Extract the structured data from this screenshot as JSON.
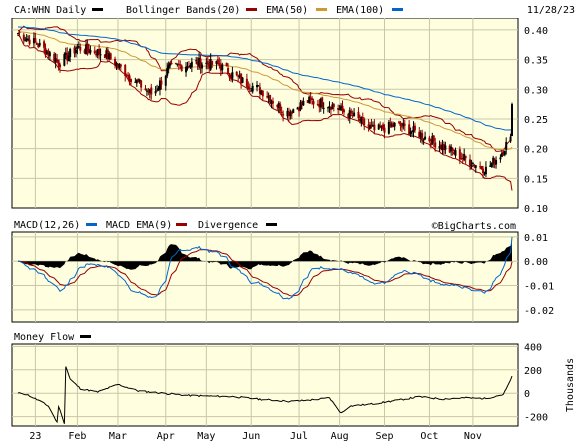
{
  "header": {
    "ticker_label": "CA:WHN Daily",
    "date": "11/28/23",
    "legend": [
      {
        "label": "Bollinger Bands(20)",
        "color": "#990000"
      },
      {
        "label": "EMA(50)",
        "color": "#cc9933"
      },
      {
        "label": "EMA(100)",
        "color": "#0066cc"
      }
    ]
  },
  "macd_panel": {
    "legend": [
      {
        "label": "MACD(12,26)",
        "color": "#0066cc"
      },
      {
        "label": "MACD EMA(9)",
        "color": "#990000"
      },
      {
        "label": "Divergence",
        "color": "#000000"
      }
    ],
    "watermark": "©BigCharts.com"
  },
  "money_panel": {
    "legend": [
      {
        "label": "Money Flow",
        "color": "#000000"
      }
    ],
    "ylabel": "Thousands"
  },
  "colors": {
    "background": "#ffffe0",
    "up": "#000000",
    "down": "#990000",
    "bollinger": "#990000",
    "ema50": "#cc9933",
    "ema100": "#0066cc",
    "macd": "#0066cc",
    "signal": "#990000"
  },
  "chart_data": [
    {
      "type": "candlestick",
      "panel": "price",
      "ylim": [
        0.1,
        0.42
      ],
      "y_ticks": [
        "0.40",
        "0.35",
        "0.30",
        "0.25",
        "0.20",
        "0.15",
        "0.10"
      ],
      "y_tick_values": [
        0.4,
        0.35,
        0.3,
        0.25,
        0.2,
        0.15,
        0.1
      ],
      "x_labels": [
        "23",
        "Feb",
        "Mar",
        "Apr",
        "May",
        "Jun",
        "Jul",
        "Aug",
        "Sep",
        "Oct",
        "Nov"
      ],
      "x_label_dates": [
        "2023-01-03",
        "2023-02-01",
        "2023-03-01",
        "2023-04-03",
        "2023-05-01",
        "2023-06-01",
        "2023-07-04",
        "2023-08-01",
        "2023-09-01",
        "2023-10-02",
        "2023-11-01"
      ],
      "date_range": [
        "2022-12-22",
        "2023-11-28"
      ],
      "close_anchors": [
        {
          "date": "2022-12-22",
          "close": 0.395
        },
        {
          "date": "2023-01-05",
          "close": 0.375
        },
        {
          "date": "2023-01-20",
          "close": 0.345
        },
        {
          "date": "2023-02-01",
          "close": 0.37
        },
        {
          "date": "2023-02-20",
          "close": 0.36
        },
        {
          "date": "2023-03-10",
          "close": 0.32
        },
        {
          "date": "2023-03-25",
          "close": 0.29
        },
        {
          "date": "2023-04-05",
          "close": 0.335
        },
        {
          "date": "2023-04-25",
          "close": 0.345
        },
        {
          "date": "2023-05-10",
          "close": 0.34
        },
        {
          "date": "2023-05-25",
          "close": 0.315
        },
        {
          "date": "2023-06-10",
          "close": 0.295
        },
        {
          "date": "2023-06-25",
          "close": 0.26
        },
        {
          "date": "2023-07-10",
          "close": 0.28
        },
        {
          "date": "2023-07-25",
          "close": 0.275
        },
        {
          "date": "2023-08-10",
          "close": 0.255
        },
        {
          "date": "2023-08-25",
          "close": 0.23
        },
        {
          "date": "2023-09-10",
          "close": 0.24
        },
        {
          "date": "2023-09-25",
          "close": 0.225
        },
        {
          "date": "2023-10-10",
          "close": 0.205
        },
        {
          "date": "2023-10-25",
          "close": 0.185
        },
        {
          "date": "2023-11-10",
          "close": 0.165
        },
        {
          "date": "2023-11-20",
          "close": 0.19
        },
        {
          "date": "2023-11-27",
          "close": 0.22
        },
        {
          "date": "2023-11-28",
          "close": 0.275
        }
      ],
      "series": [
        {
          "name": "Bollinger Bands(20)"
        },
        {
          "name": "EMA(50)"
        },
        {
          "name": "EMA(100)"
        }
      ],
      "grid": true
    },
    {
      "type": "line",
      "panel": "macd",
      "ylim": [
        -0.025,
        0.012
      ],
      "y_ticks": [
        "0.01",
        "0.00",
        "-0.01",
        "-0.02"
      ],
      "y_tick_values": [
        0.01,
        0.0,
        -0.01,
        -0.02
      ],
      "series": [
        {
          "name": "MACD(12,26)"
        },
        {
          "name": "MACD EMA(9)"
        },
        {
          "name": "Divergence",
          "type": "area"
        }
      ],
      "grid": true
    },
    {
      "type": "line",
      "panel": "money_flow",
      "ylim": [
        -280,
        420
      ],
      "y_ticks": [
        "400",
        "200",
        "0",
        "-200"
      ],
      "y_tick_values": [
        400,
        200,
        0,
        -200
      ],
      "anchors": [
        {
          "date": "2022-12-22",
          "value": 0
        },
        {
          "date": "2022-12-28",
          "value": -10
        },
        {
          "date": "2023-01-05",
          "value": -60
        },
        {
          "date": "2023-01-12",
          "value": -110
        },
        {
          "date": "2023-01-18",
          "value": -250
        },
        {
          "date": "2023-01-19",
          "value": -110
        },
        {
          "date": "2023-01-23",
          "value": -255
        },
        {
          "date": "2023-01-24",
          "value": 230
        },
        {
          "date": "2023-01-27",
          "value": 120
        },
        {
          "date": "2023-02-03",
          "value": 40
        },
        {
          "date": "2023-02-15",
          "value": 10
        },
        {
          "date": "2023-03-01",
          "value": 75
        },
        {
          "date": "2023-03-15",
          "value": 20
        },
        {
          "date": "2023-04-05",
          "value": -5
        },
        {
          "date": "2023-04-20",
          "value": -20
        },
        {
          "date": "2023-05-05",
          "value": -25
        },
        {
          "date": "2023-05-20",
          "value": -30
        },
        {
          "date": "2023-06-10",
          "value": -55
        },
        {
          "date": "2023-06-28",
          "value": -70
        },
        {
          "date": "2023-07-10",
          "value": -60
        },
        {
          "date": "2023-07-25",
          "value": -40
        },
        {
          "date": "2023-08-02",
          "value": -170
        },
        {
          "date": "2023-08-08",
          "value": -110
        },
        {
          "date": "2023-08-25",
          "value": -90
        },
        {
          "date": "2023-09-10",
          "value": -60
        },
        {
          "date": "2023-09-25",
          "value": -30
        },
        {
          "date": "2023-10-10",
          "value": -50
        },
        {
          "date": "2023-10-25",
          "value": -40
        },
        {
          "date": "2023-11-10",
          "value": -45
        },
        {
          "date": "2023-11-22",
          "value": -10
        },
        {
          "date": "2023-11-25",
          "value": 60
        },
        {
          "date": "2023-11-28",
          "value": 140
        }
      ],
      "grid": true
    }
  ]
}
